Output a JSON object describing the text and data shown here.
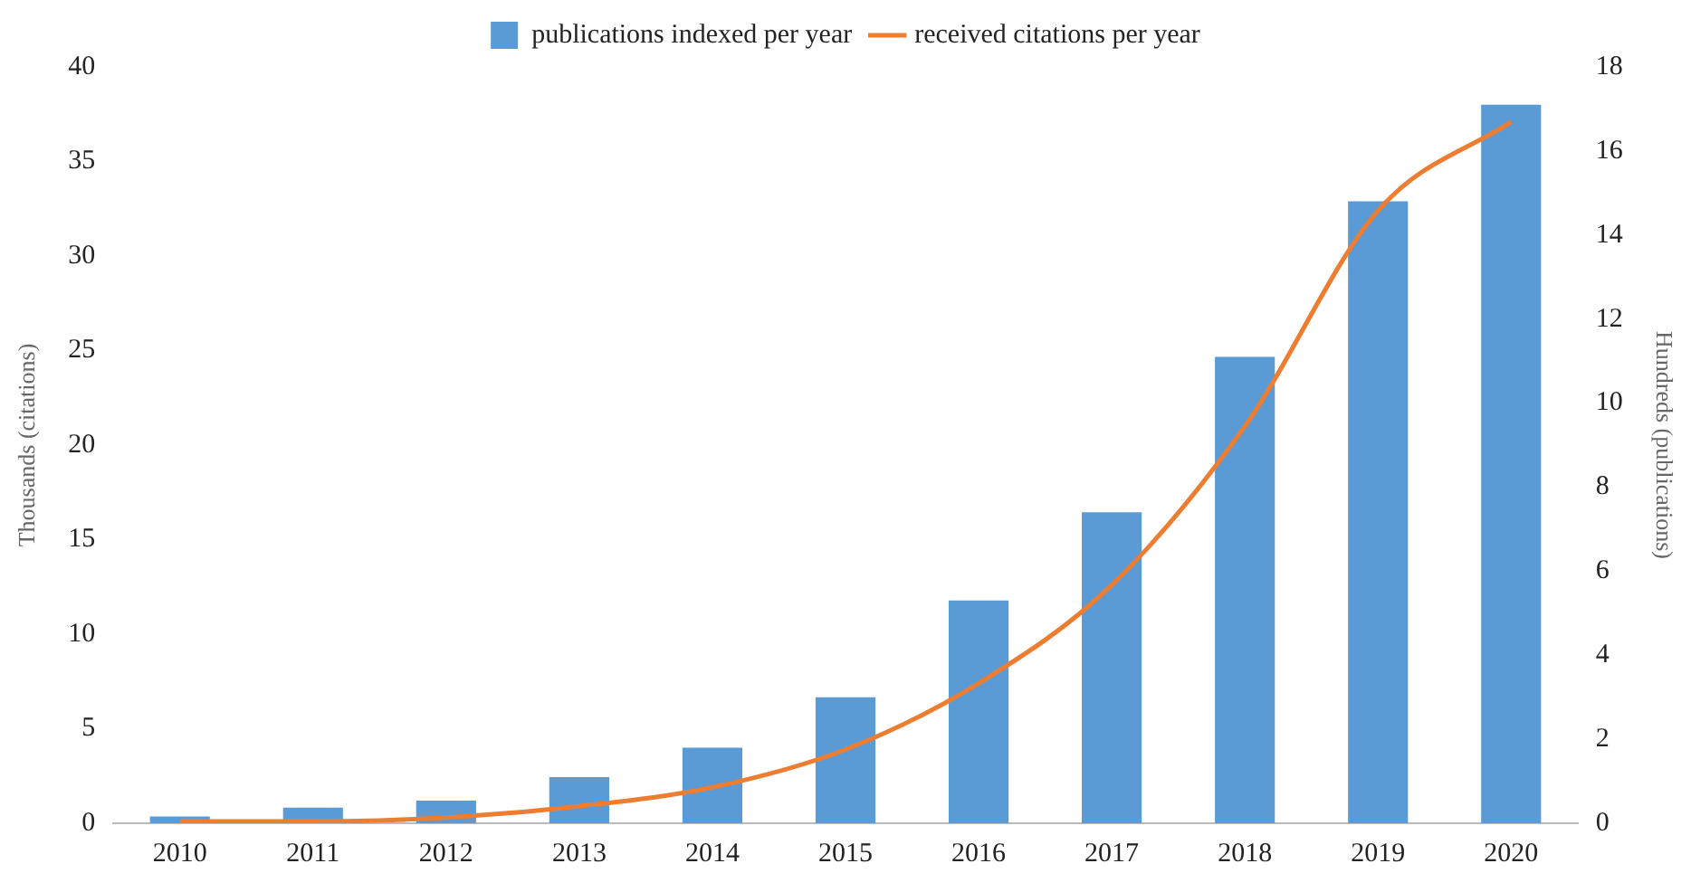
{
  "chart_data": {
    "type": "bar",
    "categories": [
      "2010",
      "2011",
      "2012",
      "2013",
      "2014",
      "2015",
      "2016",
      "2017",
      "2018",
      "2019",
      "2020"
    ],
    "series": [
      {
        "name": "publications indexed per year",
        "axis": "y2",
        "color": "#5b9bd5",
        "values": [
          0.16,
          0.37,
          0.54,
          1.1,
          1.8,
          3.0,
          5.3,
          7.4,
          11.1,
          14.8,
          17.1
        ]
      },
      {
        "name": "received citations per year",
        "type": "line",
        "color": "#ed7d31",
        "values": [
          0.1,
          0.1,
          0.3,
          0.9,
          1.9,
          3.9,
          7.4,
          12.6,
          21,
          32.4,
          37.1
        ]
      }
    ],
    "ylabel": "Thousands (citations)",
    "y2label": "Hundreds (publications)",
    "ylim": [
      0,
      40
    ],
    "yticks": [
      0,
      5,
      10,
      15,
      20,
      25,
      30,
      35,
      40
    ],
    "y2lim": [
      0,
      18
    ],
    "y2ticks": [
      0,
      2,
      4,
      6,
      8,
      10,
      12,
      14,
      16,
      18
    ],
    "grid": false,
    "legend": "top",
    "marker": "none"
  }
}
